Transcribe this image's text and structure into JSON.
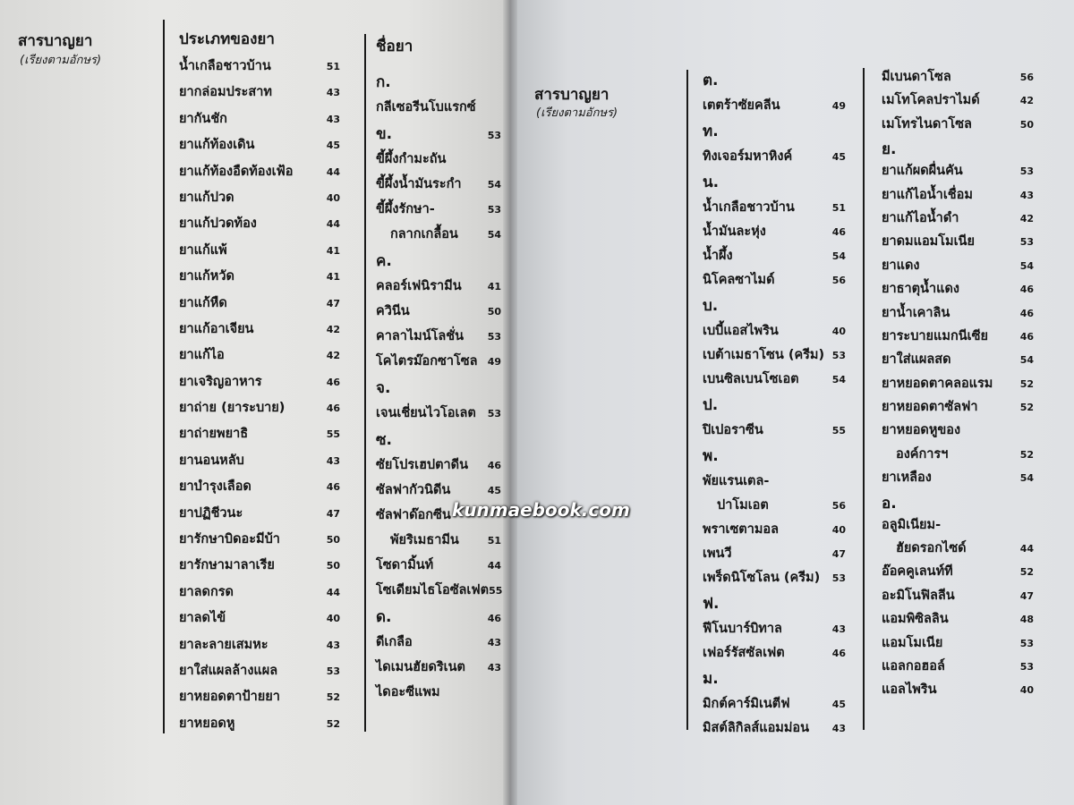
{
  "left_page": {
    "title": "สารบาญยา",
    "subtitle": "(เรียงตามอักษร)",
    "col_types": {
      "heading": "ประเภทของยา",
      "items": [
        {
          "label": "น้ำเกลือชาวบ้าน",
          "page": "51"
        },
        {
          "label": "ยากล่อมประสาท",
          "page": "43"
        },
        {
          "label": "ยากันชัก",
          "page": "43"
        },
        {
          "label": "ยาแก้ท้องเดิน",
          "page": "45"
        },
        {
          "label": "ยาแก้ท้องอืดท้องเฟ้อ",
          "page": "44"
        },
        {
          "label": "ยาแก้ปวด",
          "page": "40"
        },
        {
          "label": "ยาแก้ปวดท้อง",
          "page": "44"
        },
        {
          "label": "ยาแก้แพ้",
          "page": "41"
        },
        {
          "label": "ยาแก้หวัด",
          "page": "41"
        },
        {
          "label": "ยาแก้หืด",
          "page": "47"
        },
        {
          "label": "ยาแก้อาเจียน",
          "page": "42"
        },
        {
          "label": "ยาแก้ไอ",
          "page": "42"
        },
        {
          "label": "ยาเจริญอาหาร",
          "page": "46"
        },
        {
          "label": "ยาถ่าย (ยาระบาย)",
          "page": "46"
        },
        {
          "label": "ยาถ่ายพยาธิ",
          "page": "55"
        },
        {
          "label": "ยานอนหลับ",
          "page": "43"
        },
        {
          "label": "ยาบำรุงเลือด",
          "page": "46"
        },
        {
          "label": "ยาปฏิชีวนะ",
          "page": "47"
        },
        {
          "label": "ยารักษาบิดอะมีบ้า",
          "page": "50"
        },
        {
          "label": "ยารักษามาลาเรีย",
          "page": "50"
        },
        {
          "label": "ยาลดกรด",
          "page": "44"
        },
        {
          "label": "ยาลดไข้",
          "page": "40"
        },
        {
          "label": "ยาละลายเสมหะ",
          "page": "43"
        },
        {
          "label": "ยาใส่แผลล้างแผล",
          "page": "53"
        },
        {
          "label": "ยาหยอดตาป้ายยา",
          "page": "52"
        },
        {
          "label": "ยาหยอดหู",
          "page": "52"
        }
      ]
    },
    "col_names": {
      "heading": "ชื่อยา",
      "items": [
        {
          "header": "ก."
        },
        {
          "label": "กลีเซอรีนโบแรกซ์",
          "page": ""
        },
        {
          "header": "ข.",
          "page": "53"
        },
        {
          "label": "ขี้ผึ้งกำมะถัน",
          "page": ""
        },
        {
          "label": "ขี้ผึ้งน้ำมันระกำ",
          "page": "54"
        },
        {
          "label": "ขี้ผึ้งรักษา-",
          "page": "53"
        },
        {
          "label": "กลากเกลื้อน",
          "page": "54",
          "cont": true
        },
        {
          "header": "ค."
        },
        {
          "label": "คลอร์เฟนิรามีน",
          "page": "41"
        },
        {
          "label": "ควินีน",
          "page": "50"
        },
        {
          "label": "คาลาไมน์โลชั่น",
          "page": "53"
        },
        {
          "label": "โคไตรม๊อกซาโซล",
          "page": "49"
        },
        {
          "header": "จ."
        },
        {
          "label": "เจนเชี่ยนไวโอเลต",
          "page": "53"
        },
        {
          "header": "ซ."
        },
        {
          "label": "ซัยโปรเฮปตาดีน",
          "page": "46"
        },
        {
          "label": "ซัลฟากัวนิดีน",
          "page": "45"
        },
        {
          "label": "ซัลฟาด๊อกซีน",
          "page": ""
        },
        {
          "label": "พัยริเมธามีน",
          "page": "51",
          "cont": true
        },
        {
          "label": "โซดามิ้นท์",
          "page": "44"
        },
        {
          "label": "โซเดียมไธโอซัลเฟต",
          "page": "55"
        },
        {
          "header": "ด.",
          "page": "46"
        },
        {
          "label": "ดีเกลือ",
          "page": "43"
        },
        {
          "label": "ไดเมนฮัยดริเนต",
          "page": "43"
        },
        {
          "label": "ไดอะซีแพม",
          "page": ""
        }
      ]
    }
  },
  "right_page": {
    "title": "สารบาญยา",
    "subtitle": "(เรียงตามอักษร)",
    "col_a": [
      {
        "header": "ต."
      },
      {
        "label": "เตตร้าซัยคลีน",
        "page": "49"
      },
      {
        "header": "ท."
      },
      {
        "label": "ทิงเจอร์มหาหิงค์",
        "page": "45"
      },
      {
        "header": "น."
      },
      {
        "label": "น้ำเกลือชาวบ้าน",
        "page": "51"
      },
      {
        "label": "น้ำมันละหุ่ง",
        "page": "46"
      },
      {
        "label": "น้ำผึ้ง",
        "page": "54"
      },
      {
        "label": "นิโคลซาไมด์",
        "page": "56"
      },
      {
        "header": "บ."
      },
      {
        "label": "เบบี้แอสไพริน",
        "page": "40"
      },
      {
        "label": "เบต้าเมธาโซน (ครีม)",
        "page": "53"
      },
      {
        "label": "เบนซิลเบนโซเอต",
        "page": "54"
      },
      {
        "header": "ป."
      },
      {
        "label": "ปิเปอราซีน",
        "page": "55"
      },
      {
        "header": "พ."
      },
      {
        "label": "พัยแรนเตล-",
        "page": ""
      },
      {
        "label": "ปาโมเอต",
        "page": "56",
        "cont": true
      },
      {
        "label": "พราเซตามอล",
        "page": "40"
      },
      {
        "label": "เพนวี",
        "page": "47"
      },
      {
        "label": "เพร็ดนิโซโลน (ครีม)",
        "page": "53"
      },
      {
        "header": "ฟ."
      },
      {
        "label": "ฟีโนบาร์บิทาล",
        "page": "43"
      },
      {
        "label": "เฟอร์รัสซัลเฟต",
        "page": "46"
      },
      {
        "header": "ม."
      },
      {
        "label": "มิกต์คาร์มิเนตีฟ",
        "page": "45"
      },
      {
        "label": "มิสต์ลิกิลส์แอมม่อน",
        "page": "43"
      }
    ],
    "col_b": [
      {
        "label": "มีเบนดาโซล",
        "page": "56"
      },
      {
        "label": "เมโทโคลปราไมด์",
        "page": "42"
      },
      {
        "label": "เมโทรไนดาโซล",
        "page": "50"
      },
      {
        "header": "ย."
      },
      {
        "label": "ยาแก้ผดผื่นคัน",
        "page": "53"
      },
      {
        "label": "ยาแก้ไอน้ำเชื่อม",
        "page": "43"
      },
      {
        "label": "ยาแก้ไอน้ำดำ",
        "page": "42"
      },
      {
        "label": "ยาดมแอมโมเนีย",
        "page": "53"
      },
      {
        "label": "ยาแดง",
        "page": "54"
      },
      {
        "label": "ยาธาตุน้ำแดง",
        "page": "46"
      },
      {
        "label": "ยาน้ำเคาลิน",
        "page": "46"
      },
      {
        "label": "ยาระบายแมกนีเซีย",
        "page": "46"
      },
      {
        "label": "ยาใส่แผลสด",
        "page": "54"
      },
      {
        "label": "ยาหยอดตาคลอแรม",
        "page": "52"
      },
      {
        "label": "ยาหยอดตาซัลฟา",
        "page": "52"
      },
      {
        "label": "ยาหยอดหูของ",
        "page": ""
      },
      {
        "label": "องค์การฯ",
        "page": "52",
        "cont": true
      },
      {
        "label": "ยาเหลือง",
        "page": "54"
      },
      {
        "header": "อ."
      },
      {
        "label": "อลูมิเนียม-",
        "page": ""
      },
      {
        "label": "ฮัยดรอกไซด์",
        "page": "44",
        "cont": true
      },
      {
        "label": "อ๊อคคูเลนท์ที",
        "page": "52"
      },
      {
        "label": "อะมิโนฟิลลีน",
        "page": "47"
      },
      {
        "label": "แอมพิซิลลิน",
        "page": "48"
      },
      {
        "label": "แอมโมเนีย",
        "page": "53"
      },
      {
        "label": "แอลกอฮอล์",
        "page": "53"
      },
      {
        "label": "แอลไพริน",
        "page": "40"
      }
    ]
  },
  "watermark": "kunmaebook.com"
}
